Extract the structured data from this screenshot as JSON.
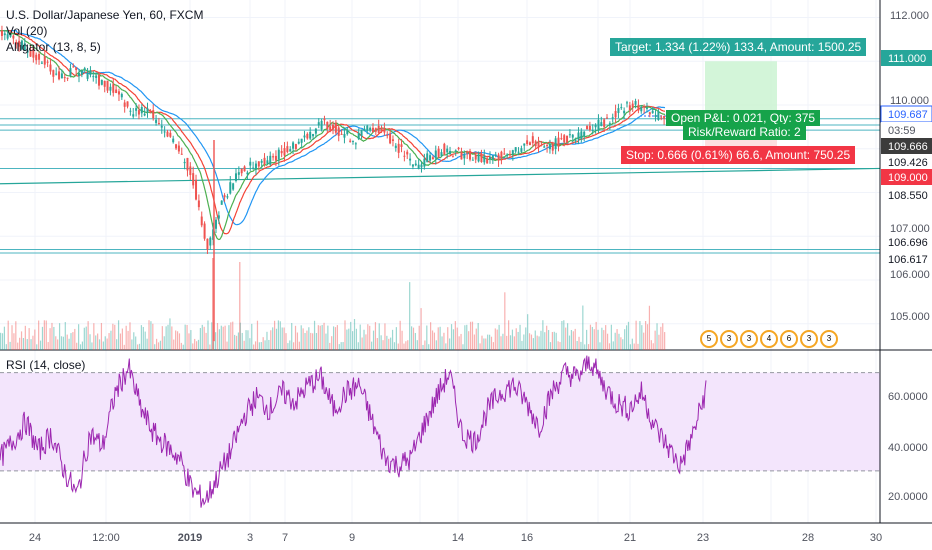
{
  "header": {
    "symbol": "U.S. Dollar/Japanese Yen, 60, FXCM",
    "volume": "Vol (20)",
    "alligator": "Alligator (13, 8, 5)"
  },
  "rsi_label": "RSI (14, close)",
  "position_tool": {
    "target": "Target: 1.334 (1.22%) 133.4, Amount: 1500.25",
    "open_pl": "Open P&L: 0.021, Qty: 375",
    "risk_reward": "Risk/Reward Ratio: 2",
    "stop": "Stop: 0.666 (0.61%) 66.6, Amount: 750.25"
  },
  "price_axis": {
    "ticks": [
      "112.000",
      "110.000",
      "107.000",
      "106.000",
      "105.000"
    ],
    "tags": [
      {
        "text": "111.000",
        "bg": "#26a69a",
        "fg": "#ffffff",
        "price": 111.0
      },
      {
        "text": "109.687",
        "bg": "#ffffff",
        "fg": "#2962ff",
        "price": 109.687,
        "border": "#2962ff"
      },
      {
        "text": "03:59",
        "bg": "#ffffff",
        "fg": "#50535e",
        "price": 109.62
      },
      {
        "text": "109.666",
        "bg": "#3c3c3c",
        "fg": "#ffffff",
        "price": 109.55
      },
      {
        "text": "109.426",
        "bg": "#ffffff",
        "fg": "#131722",
        "price": 109.426
      },
      {
        "text": "109.000",
        "bg": "#f23645",
        "fg": "#ffffff",
        "price": 109.0
      },
      {
        "text": "108.550",
        "bg": "#ffffff",
        "fg": "#131722",
        "price": 108.55
      },
      {
        "text": "106.696",
        "bg": "#ffffff",
        "fg": "#131722",
        "price": 106.696
      },
      {
        "text": "106.617",
        "bg": "#ffffff",
        "fg": "#131722",
        "price": 106.617
      }
    ]
  },
  "rsi_axis": {
    "ticks": [
      "60.0000",
      "40.0000",
      "20.0000"
    ]
  },
  "time_axis": {
    "ticks": [
      "24",
      "12:00",
      "2019",
      "3",
      "7",
      "9",
      "14",
      "16",
      "21",
      "23",
      "28",
      "30"
    ]
  },
  "colors": {
    "up": "#26a69a",
    "down": "#ef5350",
    "rsi_line": "#9c27b0",
    "rsi_band": "#f3e5fc",
    "jaw": "#2196f3",
    "teeth": "#f44336",
    "lips": "#4caf50",
    "hline": "#4cb5c0",
    "trendline": "#26a69a"
  },
  "chart_data": {
    "type": "candlestick",
    "price_axis_range": [
      104.4,
      112.4
    ],
    "rsi_range": [
      10,
      78
    ],
    "rsi_bands": [
      70,
      30
    ],
    "horizontal_levels": [
      109.687,
      109.426,
      108.55,
      106.696,
      106.617
    ],
    "trendline": {
      "from": 108.2,
      "to": 108.55
    },
    "position": {
      "entry": 109.666,
      "target": 111.0,
      "stop": 109.0
    },
    "close_path": [
      111.7,
      111.5,
      111.2,
      111.0,
      110.6,
      110.8,
      110.7,
      110.5,
      110.3,
      109.8,
      109.9,
      109.4,
      109.0,
      108.4,
      106.7,
      107.8,
      108.4,
      108.6,
      108.7,
      108.9,
      109.1,
      109.4,
      109.6,
      109.4,
      109.2,
      109.5,
      109.4,
      109.0,
      108.6,
      108.8,
      109.0,
      108.9,
      108.8,
      108.7,
      108.9,
      109.0,
      109.2,
      109.0,
      109.2,
      109.3,
      109.5,
      109.6,
      109.9,
      110.0,
      109.8,
      109.7
    ],
    "rsi_values": [
      35,
      42,
      50,
      38,
      45,
      30,
      20,
      45,
      40,
      62,
      72,
      55,
      45,
      40,
      35,
      22,
      18,
      28,
      38,
      52,
      60,
      55,
      62,
      58,
      65,
      68,
      55,
      62,
      65,
      50,
      35,
      32,
      35,
      48,
      60,
      70,
      45,
      42,
      55,
      62,
      65,
      58,
      48,
      62,
      70,
      68,
      75,
      65,
      58,
      55,
      62,
      48,
      40,
      32,
      45,
      63
    ]
  },
  "event_badges": [
    "5",
    "3",
    "3",
    "4",
    "6",
    "3",
    "3"
  ]
}
